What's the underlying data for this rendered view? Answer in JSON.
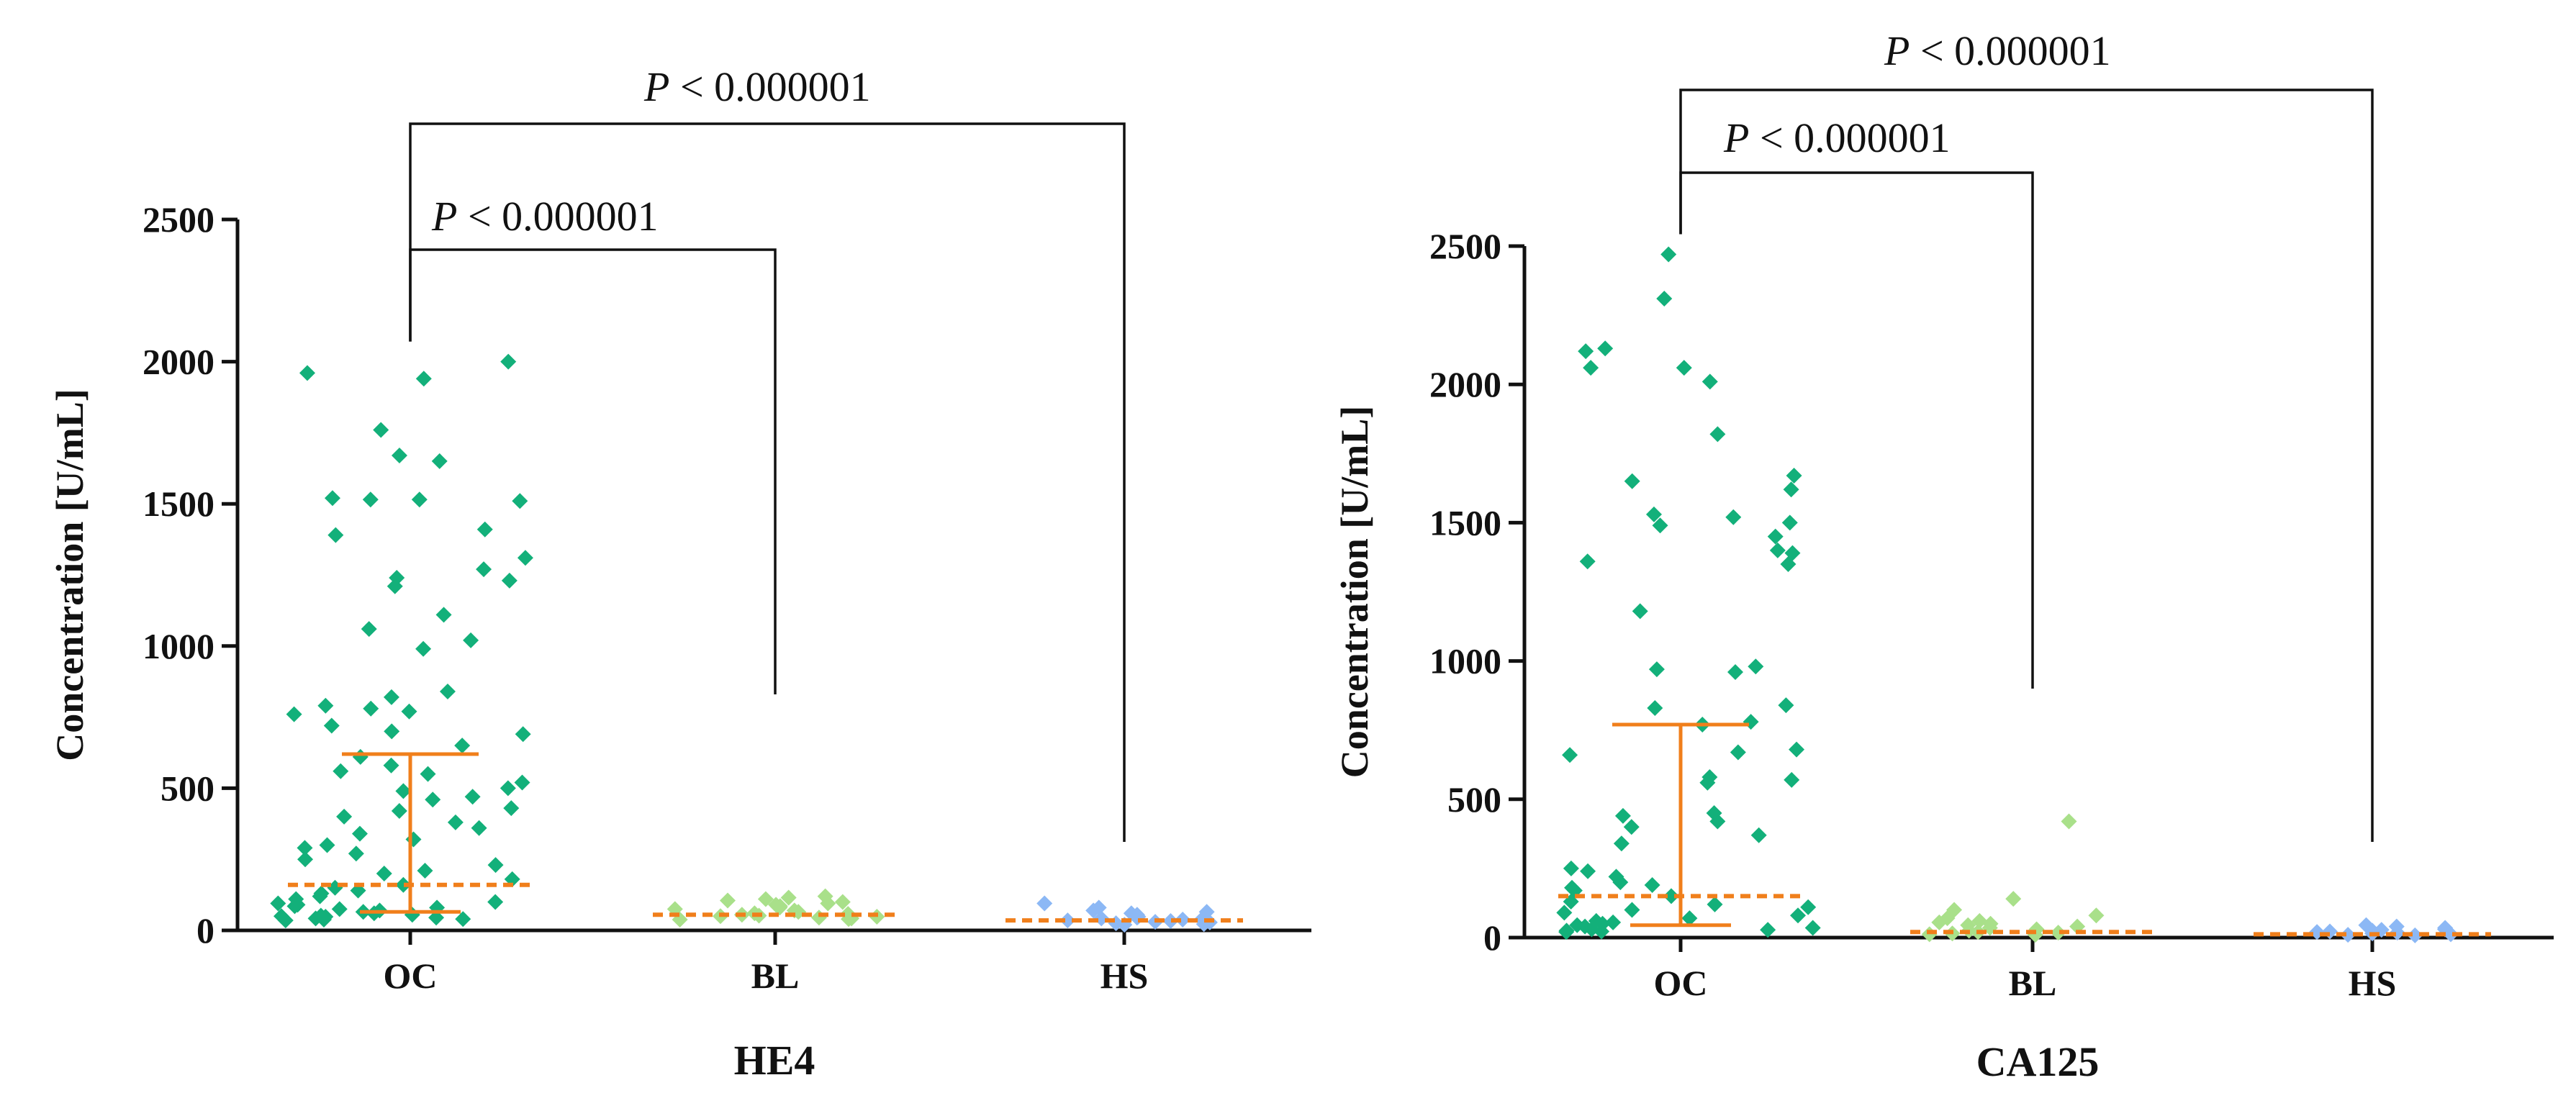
{
  "chart_data": [
    {
      "type": "scatter",
      "subtype": "dot-plot with median and interquartile range",
      "title": "",
      "xlabel": "HE4",
      "ylabel": "Concentration [U/mL]",
      "categories": [
        "OC",
        "BL",
        "HS"
      ],
      "ylim": [
        0,
        2500
      ],
      "yticks": [
        "0",
        "500",
        "1000",
        "1500",
        "2000",
        "2500"
      ],
      "group_colors": [
        "#13b07a",
        "#a9e08a",
        "#8cb8f5"
      ],
      "median_color": "#f07f1b",
      "series": [
        {
          "name": "OC",
          "median": 160,
          "q1": 65,
          "q3": 620,
          "values": [
            2000,
            1960,
            1940,
            1760,
            1670,
            1650,
            1520,
            1515,
            1515,
            1510,
            1410,
            1390,
            1310,
            1270,
            1240,
            1230,
            1210,
            1110,
            1060,
            1020,
            990,
            840,
            820,
            790,
            780,
            770,
            760,
            720,
            700,
            690,
            650,
            610,
            580,
            560,
            550,
            520,
            500,
            490,
            470,
            460,
            430,
            420,
            400,
            380,
            360,
            340,
            320,
            300,
            290,
            270,
            250,
            230,
            210,
            200,
            180,
            160,
            150,
            140,
            130,
            120,
            110,
            100,
            95,
            90,
            85,
            80,
            75,
            70,
            65,
            60,
            55,
            52,
            50,
            48,
            45,
            42,
            40,
            38,
            35
          ]
        },
        {
          "name": "BL",
          "median": 55,
          "values": [
            120,
            115,
            110,
            105,
            100,
            95,
            90,
            85,
            80,
            75,
            70,
            65,
            60,
            58,
            55,
            52,
            50,
            48,
            45,
            42,
            40,
            38
          ]
        },
        {
          "name": "HS",
          "median": 35,
          "values": [
            95,
            80,
            70,
            65,
            60,
            55,
            50,
            48,
            45,
            42,
            40,
            38,
            35,
            33,
            30,
            28,
            25,
            22,
            20
          ]
        }
      ],
      "annotations": [
        {
          "from": "OC",
          "to": "BL",
          "text": "P",
          "comparator": "< 0.000001"
        },
        {
          "from": "OC",
          "to": "HS",
          "text": "P",
          "comparator": "< 0.000001"
        }
      ]
    },
    {
      "type": "scatter",
      "subtype": "dot-plot with median and interquartile range",
      "title": "",
      "xlabel": "CA125",
      "ylabel": "Concentration [U/mL]",
      "categories": [
        "OC",
        "BL",
        "HS"
      ],
      "ylim": [
        0,
        2500
      ],
      "yticks": [
        "0",
        "500",
        "1000",
        "1500",
        "2000",
        "2500"
      ],
      "group_colors": [
        "#13b07a",
        "#a9e08a",
        "#8cb8f5"
      ],
      "median_color": "#f07f1b",
      "series": [
        {
          "name": "OC",
          "median": 150,
          "q1": 45,
          "q3": 770,
          "values": [
            2470,
            2310,
            2130,
            2120,
            2060,
            2060,
            2010,
            1820,
            1670,
            1650,
            1620,
            1530,
            1520,
            1500,
            1490,
            1450,
            1400,
            1390,
            1360,
            1350,
            1180,
            980,
            970,
            960,
            840,
            830,
            780,
            770,
            680,
            670,
            660,
            580,
            570,
            560,
            450,
            440,
            420,
            400,
            370,
            340,
            250,
            240,
            220,
            200,
            190,
            180,
            170,
            150,
            130,
            120,
            110,
            100,
            90,
            80,
            70,
            60,
            55,
            50,
            45,
            40,
            35,
            30,
            28,
            25,
            22,
            20
          ]
        },
        {
          "name": "BL",
          "median": 20,
          "values": [
            420,
            140,
            100,
            80,
            70,
            60,
            55,
            50,
            45,
            40,
            35,
            30,
            25,
            20,
            18,
            15,
            12,
            10
          ]
        },
        {
          "name": "HS",
          "median": 12,
          "values": [
            45,
            40,
            35,
            30,
            28,
            25,
            22,
            20,
            18,
            15,
            12,
            10,
            8
          ]
        }
      ],
      "annotations": [
        {
          "from": "OC",
          "to": "BL",
          "text": "P",
          "comparator": "< 0.000001"
        },
        {
          "from": "OC",
          "to": "HS",
          "text": "P",
          "comparator": "< 0.000001"
        }
      ]
    }
  ]
}
